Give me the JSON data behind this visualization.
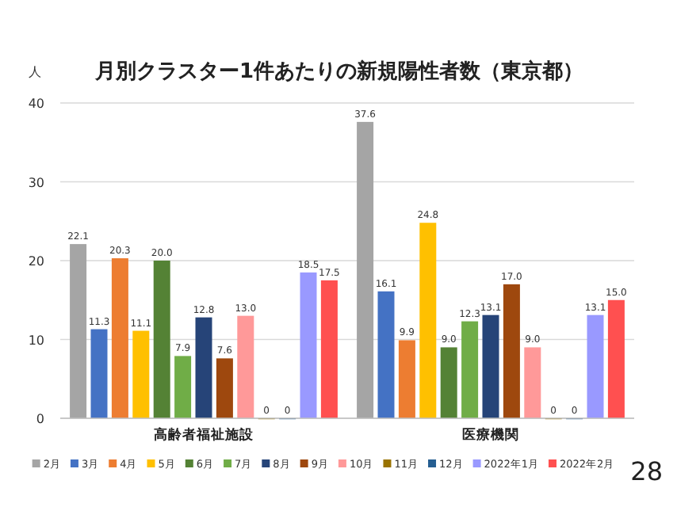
{
  "chart_data": {
    "type": "bar",
    "title": "月別クラスター1件あたりの新規陽性者数（東京都）",
    "ylabel": "人",
    "categories": [
      "高齢者福祉施設",
      "医療機関"
    ],
    "ylim": [
      0,
      40
    ],
    "yticks": [
      0,
      10,
      20,
      30,
      40
    ],
    "grid": "y",
    "legend": "bottom",
    "annotations": [
      "28"
    ],
    "series": [
      {
        "name": "2月",
        "color": "#a5a5a5",
        "values": [
          22.1,
          37.6
        ],
        "value_labels": [
          "22.1",
          "37.6"
        ]
      },
      {
        "name": "3月",
        "color": "#4472c4",
        "values": [
          11.3,
          16.1
        ],
        "value_labels": [
          "11.3",
          "16.1"
        ]
      },
      {
        "name": "4月",
        "color": "#ed7d31",
        "values": [
          20.3,
          9.9
        ],
        "value_labels": [
          "20.3",
          "9.9"
        ]
      },
      {
        "name": "5月",
        "color": "#ffc000",
        "values": [
          11.1,
          24.8
        ],
        "value_labels": [
          "11.1",
          "24.8"
        ]
      },
      {
        "name": "6月",
        "color": "#548235",
        "values": [
          20.0,
          9.0
        ],
        "value_labels": [
          "20.0",
          "9.0"
        ]
      },
      {
        "name": "7月",
        "color": "#70ad47",
        "values": [
          7.9,
          12.3
        ],
        "value_labels": [
          "7.9",
          "12.3"
        ]
      },
      {
        "name": "8月",
        "color": "#264478",
        "values": [
          12.8,
          13.1
        ],
        "value_labels": [
          "12.8",
          "13.1"
        ]
      },
      {
        "name": "9月",
        "color": "#9e480e",
        "values": [
          7.6,
          17.0
        ],
        "value_labels": [
          "7.6",
          "17.0"
        ]
      },
      {
        "name": "10月",
        "color": "#ff9999",
        "values": [
          13.0,
          9.0
        ],
        "value_labels": [
          "13.0",
          "9.0"
        ]
      },
      {
        "name": "11月",
        "color": "#997300",
        "values": [
          0,
          0
        ],
        "value_labels": [
          "0",
          "0"
        ]
      },
      {
        "name": "12月",
        "color": "#255e91",
        "values": [
          0,
          0
        ],
        "value_labels": [
          "0",
          "0"
        ]
      },
      {
        "name": "2022年1月",
        "color": "#9999ff",
        "values": [
          18.5,
          13.1
        ],
        "value_labels": [
          "18.5",
          "13.1"
        ]
      },
      {
        "name": "2022年2月",
        "color": "#ff5050",
        "values": [
          17.5,
          15.0
        ],
        "value_labels": [
          "17.5",
          "15.0"
        ]
      }
    ]
  }
}
